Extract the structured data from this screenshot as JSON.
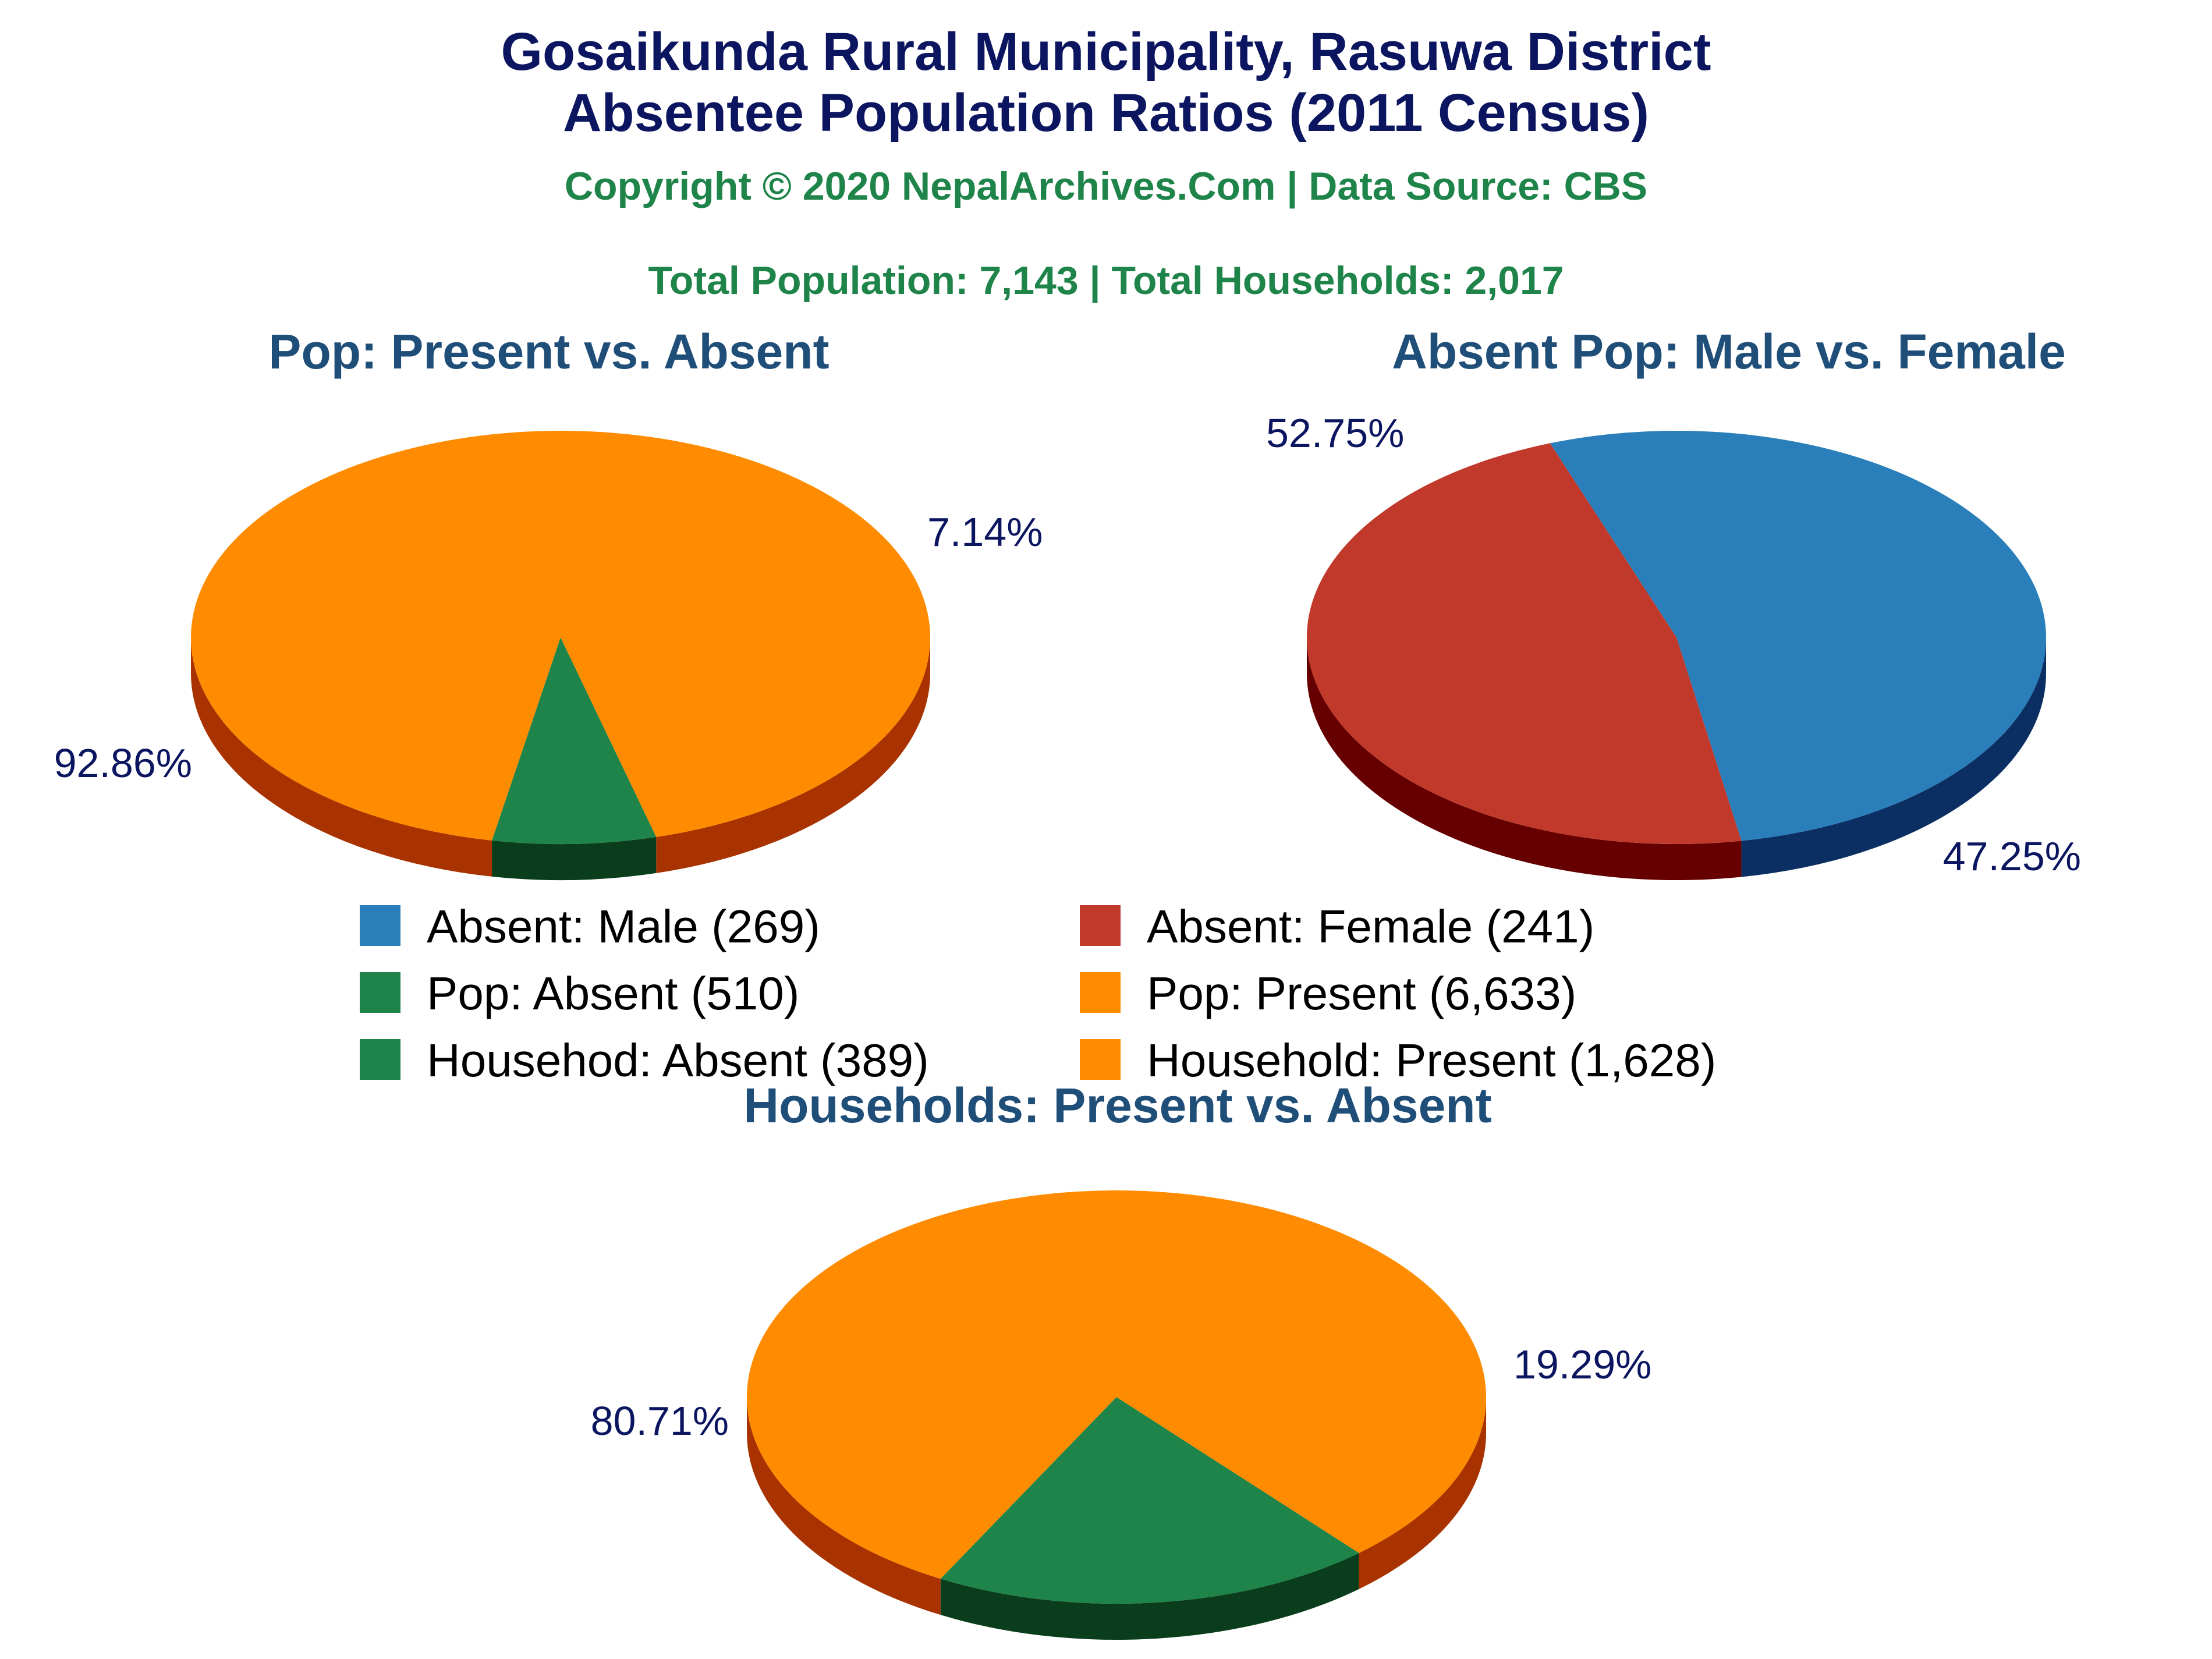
{
  "header": {
    "title_line1": "Gosaikunda Rural Municipality, Rasuwa District",
    "title_line2": "Absentee Population Ratios (2011 Census)",
    "copyright": "Copyright © 2020 NepalArchives.Com | Data Source: CBS",
    "totals": "Total Population: 7,143 | Total Households: 2,017"
  },
  "legend": [
    {
      "label": "Absent: Male (269)",
      "color": "#2a7fba"
    },
    {
      "label": "Absent: Female (241)",
      "color": "#c0392b"
    },
    {
      "label": "Pop: Absent (510)",
      "color": "#1e8449"
    },
    {
      "label": "Pop: Present (6,633)",
      "color": "#ff8c00"
    },
    {
      "label": "Househod: Absent (389)",
      "color": "#1e8449"
    },
    {
      "label": "Household: Present (1,628)",
      "color": "#ff8c00"
    }
  ],
  "chart_data": [
    {
      "type": "pie",
      "title": "Pop: Present vs. Absent",
      "slices": [
        {
          "name": "Pop: Absent",
          "value": 510,
          "percent_label": "7.14%",
          "color": "#1e8449",
          "side_color": "#0a3d1c"
        },
        {
          "name": "Pop: Present",
          "value": 6633,
          "percent_label": "92.86%",
          "color": "#ff8c00",
          "side_color": "#a83200"
        }
      ]
    },
    {
      "type": "pie",
      "title": "Absent Pop: Male vs. Female",
      "slices": [
        {
          "name": "Absent: Male",
          "value": 269,
          "percent_label": "52.75%",
          "color": "#2a7fba",
          "side_color": "#0b2f63"
        },
        {
          "name": "Absent: Female",
          "value": 241,
          "percent_label": "47.25%",
          "color": "#c0392b",
          "side_color": "#660000"
        }
      ]
    },
    {
      "type": "pie",
      "title": "Households: Present vs. Absent",
      "slices": [
        {
          "name": "Househod: Absent",
          "value": 389,
          "percent_label": "19.29%",
          "color": "#1e8449",
          "side_color": "#0a3d1c"
        },
        {
          "name": "Household: Present",
          "value": 1628,
          "percent_label": "80.71%",
          "color": "#ff8c00",
          "side_color": "#a83200"
        }
      ]
    }
  ]
}
